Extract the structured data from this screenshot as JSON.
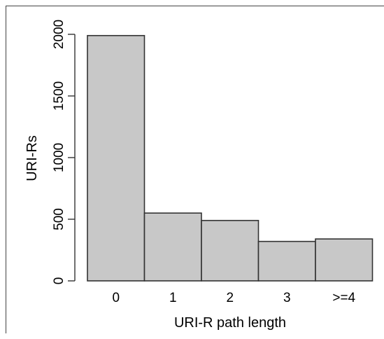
{
  "chart_data": {
    "type": "bar",
    "categories": [
      "0",
      "1",
      "2",
      "3",
      ">=4"
    ],
    "values": [
      1990,
      550,
      490,
      320,
      340
    ],
    "xlabel": "URI-R path length",
    "ylabel": "URI-Rs",
    "ylim": [
      0,
      2000
    ],
    "yticks": [
      0,
      500,
      1000,
      1500,
      2000
    ],
    "ytick_labels": [
      "0",
      "500",
      "1000",
      "1500",
      "2000"
    ],
    "grid": false,
    "colors": {
      "bar_fill": "#c8c8c8",
      "bar_stroke": "#333333",
      "axis": "#333333"
    }
  }
}
